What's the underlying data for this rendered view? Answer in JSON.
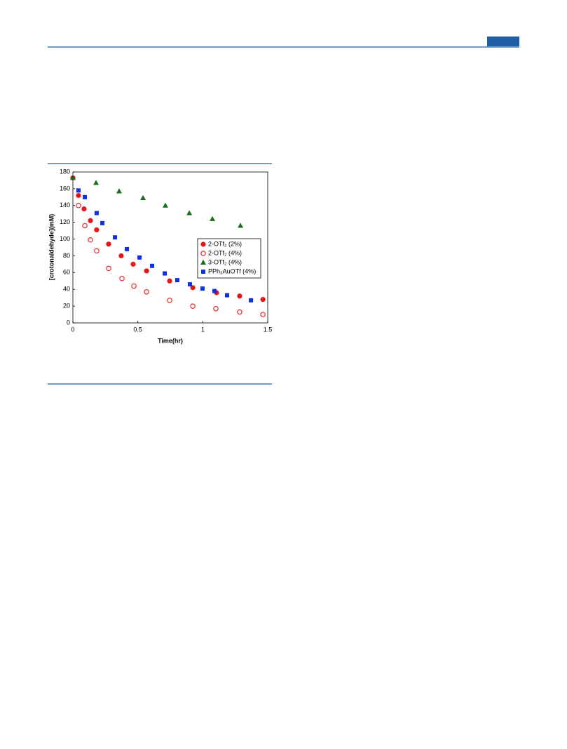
{
  "chart_data": {
    "type": "scatter",
    "x_label": "Time(hr)",
    "y_label": "[crotonaldehyde](mM)",
    "xlim": [
      0,
      1.5
    ],
    "ylim": [
      0,
      180
    ],
    "xticks": [
      0,
      0.5,
      1,
      1.5
    ],
    "yticks": [
      0,
      20,
      40,
      60,
      80,
      100,
      120,
      140,
      160,
      180
    ],
    "grid": false,
    "legend": "right",
    "series": [
      {
        "name": "2-OTf₂ (2%)",
        "color": "#e8161b",
        "marker": "circle",
        "x": [
          0,
          0.043,
          0.086,
          0.135,
          0.183,
          0.275,
          0.372,
          0.464,
          0.567,
          0.745,
          0.923,
          1.106,
          1.284,
          1.463
        ],
        "values": [
          173,
          152,
          136,
          122,
          111,
          94,
          80,
          70,
          62,
          50,
          42,
          36,
          32,
          28
        ]
      },
      {
        "name": "2-OTf₂ (4%)",
        "color": "#e8161b",
        "marker": "open-circle",
        "x": [
          0.043,
          0.092,
          0.135,
          0.183,
          0.275,
          0.378,
          0.47,
          0.567,
          0.745,
          0.923,
          1.101,
          1.284,
          1.463
        ],
        "values": [
          140,
          116,
          99,
          86,
          65,
          53,
          44,
          37,
          27,
          20,
          17,
          13,
          10
        ]
      },
      {
        "name": "3-OTf₂ (4%)",
        "color": "#1a6e1a",
        "marker": "triangle",
        "x": [
          0,
          0.178,
          0.356,
          0.54,
          0.712,
          0.896,
          1.074,
          1.29
        ],
        "values": [
          173,
          167,
          157,
          149,
          140,
          131,
          124,
          116
        ]
      },
      {
        "name": "PPh₃AuOTf (4%)",
        "color": "#1030e0",
        "marker": "square",
        "x": [
          0.043,
          0.092,
          0.183,
          0.227,
          0.324,
          0.416,
          0.513,
          0.61,
          0.707,
          0.804,
          0.901,
          0.998,
          1.09,
          1.187,
          1.371
        ],
        "values": [
          158,
          150,
          131,
          119,
          102,
          88,
          78,
          68,
          59,
          51,
          46,
          41,
          38,
          33,
          27
        ]
      }
    ]
  }
}
